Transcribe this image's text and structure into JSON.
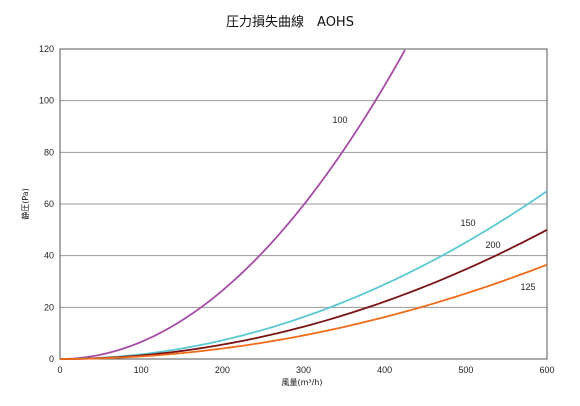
{
  "chart_data": {
    "type": "line",
    "title": "圧力損失曲線　AOHS",
    "xlabel": "風量(m³/h)",
    "ylabel": "静圧(Pa)",
    "xlim": [
      0,
      600
    ],
    "ylim": [
      0,
      120
    ],
    "x_ticks": [
      "0",
      "100",
      "200",
      "300",
      "400",
      "500",
      "600"
    ],
    "y_ticks": [
      "0",
      "20",
      "40",
      "60",
      "80",
      "100",
      "120"
    ],
    "grid": "horizontal",
    "legend": "inline labels",
    "series": [
      {
        "name": "100",
        "color": "#a64ca6",
        "x": [
          0,
          50,
          100,
          150,
          200,
          250,
          300,
          350,
          400,
          425
        ],
        "y": [
          0,
          1.6,
          6.6,
          14.9,
          26.5,
          41.4,
          59.6,
          81.1,
          105.9,
          119.6
        ]
      },
      {
        "name": "150",
        "color": "#5bc8d4",
        "x": [
          0,
          100,
          200,
          300,
          400,
          500,
          600
        ],
        "y": [
          0,
          1.8,
          7.2,
          16.2,
          28.9,
          45.1,
          65.0
        ]
      },
      {
        "name": "200",
        "color": "#7a1212",
        "x": [
          0,
          100,
          200,
          300,
          400,
          500,
          600
        ],
        "y": [
          0,
          1.4,
          5.6,
          12.5,
          22.2,
          34.7,
          50.0
        ]
      },
      {
        "name": "125",
        "color": "#ef6c1a",
        "x": [
          0,
          100,
          200,
          300,
          400,
          500,
          600
        ],
        "y": [
          0,
          1.0,
          4.0,
          9.1,
          16.2,
          25.3,
          36.5
        ]
      }
    ]
  }
}
